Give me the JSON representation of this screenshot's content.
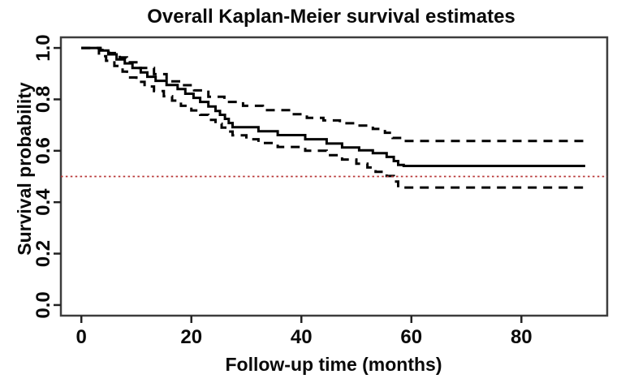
{
  "figure": {
    "background": "#ffffff"
  },
  "chart_data": {
    "type": "line",
    "subtype": "kaplan-meier-step",
    "title": "Overall Kaplan-Meier survival estimates",
    "xlabel": "Follow-up time (months)",
    "ylabel": "Survival probability",
    "xlim": [
      -3.72,
      95.6
    ],
    "ylim": [
      -0.0413,
      1.0413
    ],
    "x_ticks": [
      0,
      20,
      40,
      60,
      80
    ],
    "y_ticks": [
      0.0,
      0.2,
      0.4,
      0.6,
      0.8,
      1.0
    ],
    "grid": false,
    "legend": "none",
    "axis_color": "#3d3d3d",
    "tick_color": "#222222",
    "curve_color": "#000000",
    "reference_line": {
      "y": 0.5,
      "style": "dotted",
      "color": "#b73636"
    },
    "max_follow_up": 91.6,
    "series": [
      {
        "name": "survival-estimate",
        "style": "solid",
        "steps": [
          [
            0,
            1.0
          ],
          [
            3.4,
            0.99
          ],
          [
            4.9,
            0.975
          ],
          [
            6.4,
            0.955
          ],
          [
            7.9,
            0.94
          ],
          [
            9.3,
            0.922
          ],
          [
            10.8,
            0.905
          ],
          [
            12,
            0.888
          ],
          [
            13.5,
            0.872
          ],
          [
            15.5,
            0.856
          ],
          [
            17.5,
            0.84
          ],
          [
            18.9,
            0.822
          ],
          [
            20.4,
            0.806
          ],
          [
            21.6,
            0.79
          ],
          [
            23.1,
            0.772
          ],
          [
            24.4,
            0.755
          ],
          [
            25.2,
            0.74
          ],
          [
            26.1,
            0.724
          ],
          [
            26.8,
            0.708
          ],
          [
            27.5,
            0.692
          ],
          [
            32.2,
            0.676
          ],
          [
            35.7,
            0.661
          ],
          [
            40.7,
            0.645
          ],
          [
            44.6,
            0.628
          ],
          [
            47.4,
            0.613
          ],
          [
            50.5,
            0.602
          ],
          [
            53,
            0.591
          ],
          [
            55.5,
            0.576
          ],
          [
            56.8,
            0.56
          ],
          [
            57.6,
            0.545
          ],
          [
            58.6,
            0.541
          ]
        ]
      },
      {
        "name": "upper-95pct-confidence-band",
        "style": "dashed",
        "steps": [
          [
            0,
            1.0
          ],
          [
            3.5,
            0.992
          ],
          [
            5,
            0.98
          ],
          [
            7,
            0.963
          ],
          [
            8.3,
            0.944
          ],
          [
            10.5,
            0.922
          ],
          [
            13.2,
            0.898
          ],
          [
            15.5,
            0.87
          ],
          [
            18.1,
            0.855
          ],
          [
            20.5,
            0.835
          ],
          [
            23.1,
            0.81
          ],
          [
            26,
            0.79
          ],
          [
            29.4,
            0.775
          ],
          [
            33,
            0.758
          ],
          [
            38,
            0.742
          ],
          [
            41,
            0.728
          ],
          [
            44,
            0.718
          ],
          [
            47,
            0.707
          ],
          [
            50,
            0.698
          ],
          [
            53,
            0.685
          ],
          [
            55.2,
            0.67
          ],
          [
            56.6,
            0.65
          ],
          [
            58.2,
            0.638
          ]
        ]
      },
      {
        "name": "lower-95pct-confidence-band",
        "style": "dashed",
        "steps": [
          [
            0,
            1.0
          ],
          [
            3.2,
            0.968
          ],
          [
            4.5,
            0.95
          ],
          [
            6,
            0.93
          ],
          [
            7.5,
            0.908
          ],
          [
            8.3,
            0.885
          ],
          [
            10,
            0.868
          ],
          [
            11.5,
            0.85
          ],
          [
            13.2,
            0.832
          ],
          [
            15,
            0.812
          ],
          [
            16.5,
            0.795
          ],
          [
            18.1,
            0.775
          ],
          [
            20,
            0.757
          ],
          [
            21.6,
            0.74
          ],
          [
            23.1,
            0.72
          ],
          [
            24.4,
            0.705
          ],
          [
            25.5,
            0.69
          ],
          [
            26.5,
            0.675
          ],
          [
            27.5,
            0.66
          ],
          [
            30,
            0.645
          ],
          [
            32.2,
            0.63
          ],
          [
            35.7,
            0.615
          ],
          [
            40.7,
            0.6
          ],
          [
            44.6,
            0.583
          ],
          [
            47.4,
            0.566
          ],
          [
            50,
            0.55
          ],
          [
            52,
            0.535
          ],
          [
            53.5,
            0.518
          ],
          [
            55.5,
            0.502
          ],
          [
            56.8,
            0.48
          ],
          [
            57.6,
            0.457
          ]
        ]
      }
    ]
  }
}
